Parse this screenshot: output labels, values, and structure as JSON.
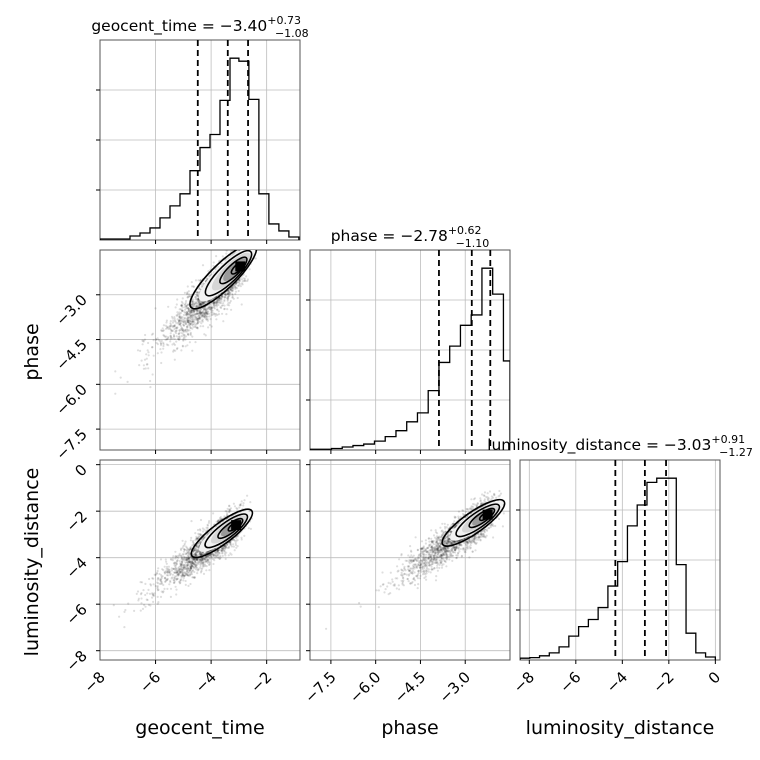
{
  "chart_data": {
    "type": "corner",
    "parameters": [
      {
        "name": "geocent_time",
        "median": "−3.40",
        "upper": "+0.73",
        "lower": "−1.08",
        "quantiles": [
          -4.48,
          -3.4,
          -2.67
        ],
        "range": [
          -8.0,
          -0.8
        ],
        "ticks": [
          -8,
          -6,
          -4,
          -2
        ],
        "tick_labels": [
          "−8",
          "−6",
          "−4",
          "−2"
        ]
      },
      {
        "name": "phase",
        "median": "−2.78",
        "upper": "+0.62",
        "lower": "−1.10",
        "quantiles": [
          -3.88,
          -2.78,
          -2.16
        ],
        "range": [
          -8.2,
          -1.5
        ],
        "ticks": [
          -7.5,
          -6.0,
          -4.5,
          -3.0
        ],
        "tick_labels": [
          "−7.5",
          "−6.0",
          "−4.5",
          "−3.0"
        ]
      },
      {
        "name": "luminosity_distance",
        "median": "−3.03",
        "upper": "+0.91",
        "lower": "−1.27",
        "quantiles": [
          -4.3,
          -3.03,
          -2.12
        ],
        "range": [
          -8.4,
          0.2
        ],
        "ticks": [
          -8,
          -6,
          -4,
          -2,
          0
        ],
        "tick_labels": [
          "−8",
          "−6",
          "−4",
          "−2",
          "0"
        ]
      }
    ],
    "histograms": [
      {
        "bins": [
          -8.0,
          -7.64,
          -7.28,
          -6.92,
          -6.56,
          -6.2,
          -5.84,
          -5.48,
          -5.12,
          -4.76,
          -4.4,
          -4.04,
          -3.68,
          -3.32,
          -3.0,
          -2.64,
          -2.28,
          -1.92,
          -1.56,
          -1.2,
          -0.84
        ],
        "counts": [
          1,
          1,
          1,
          4,
          7,
          12,
          22,
          34,
          46,
          69,
          92,
          105,
          139,
          181,
          178,
          140,
          46,
          16,
          9,
          3
        ]
      },
      {
        "bins": [
          -8.2,
          -7.84,
          -7.48,
          -7.12,
          -6.76,
          -6.4,
          -6.04,
          -5.68,
          -5.32,
          -4.96,
          -4.6,
          -4.24,
          -3.88,
          -3.52,
          -3.16,
          -2.8,
          -2.44,
          -2.08,
          -1.72,
          -1.5
        ],
        "counts": [
          1,
          1,
          2,
          4,
          6,
          8,
          12,
          18,
          26,
          38,
          50,
          80,
          118,
          140,
          168,
          182,
          245,
          210,
          120
        ]
      },
      {
        "bins": [
          -8.4,
          -7.98,
          -7.56,
          -7.14,
          -6.72,
          -6.3,
          -5.88,
          -5.46,
          -5.04,
          -4.62,
          -4.2,
          -3.78,
          -3.36,
          -2.94,
          -2.52,
          -2.1,
          -1.68,
          -1.26,
          -0.84,
          -0.42,
          0.0
        ],
        "counts": [
          3,
          4,
          7,
          12,
          22,
          40,
          56,
          68,
          88,
          124,
          165,
          225,
          260,
          298,
          305,
          305,
          160,
          45,
          12,
          5
        ]
      }
    ],
    "samples_2d": [
      {
        "x": "geocent_time",
        "y": "phase",
        "mode": [
          -2.95,
          -2.05
        ]
      },
      {
        "x": "geocent_time",
        "y": "luminosity_distance",
        "mode": [
          -3.1,
          -2.6
        ]
      },
      {
        "x": "phase",
        "y": "luminosity_distance",
        "mode": [
          -2.25,
          -2.15
        ]
      }
    ],
    "grid": true
  },
  "axis_labels": [
    "geocent_time",
    "phase",
    "luminosity_distance"
  ]
}
